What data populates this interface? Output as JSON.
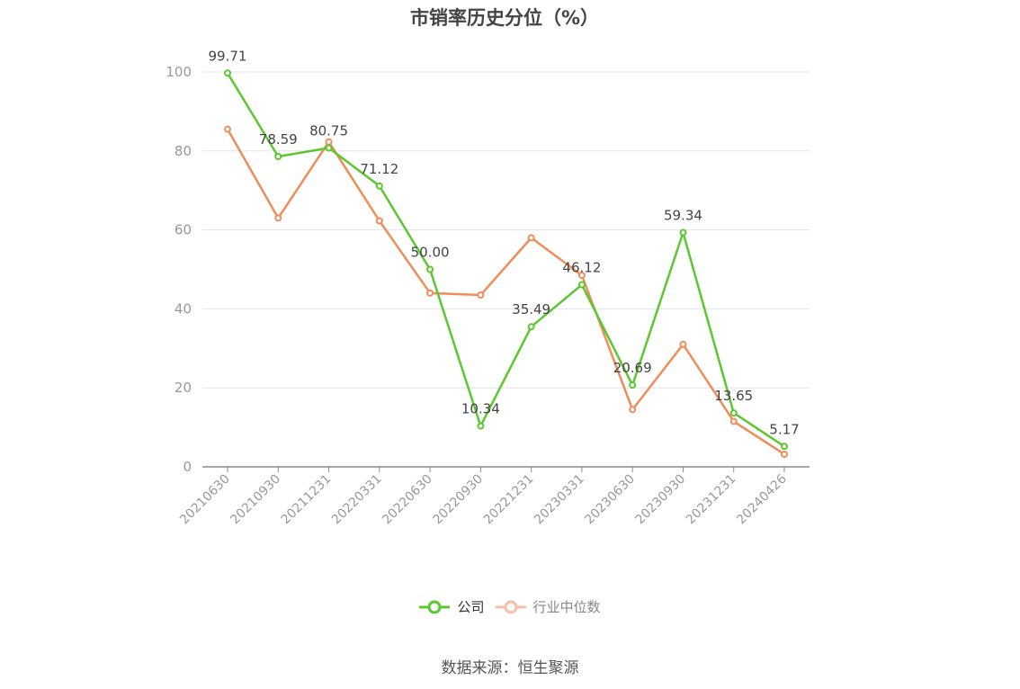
{
  "chart_data": {
    "type": "line",
    "title": "市销率历史分位（%）",
    "categories": [
      "20210630",
      "20210930",
      "20211231",
      "20220331",
      "20220630",
      "20220930",
      "20221231",
      "20230331",
      "20230630",
      "20230930",
      "20231231",
      "20240426"
    ],
    "series": [
      {
        "name": "公司",
        "color": "#5cc72f",
        "values": [
          99.71,
          78.59,
          80.75,
          71.12,
          50.0,
          10.34,
          35.49,
          46.12,
          20.69,
          59.34,
          13.65,
          5.17
        ],
        "labels": [
          "99.71",
          "78.59",
          "80.75",
          "71.12",
          "50.00",
          "10.34",
          "35.49",
          "46.12",
          "20.69",
          "59.34",
          "13.65",
          "5.17"
        ]
      },
      {
        "name": "行业中位数",
        "color": "#f08c5a",
        "values": [
          85.5,
          63,
          82.3,
          62.3,
          44,
          43.5,
          58,
          48.5,
          14.5,
          31,
          11.5,
          3.2
        ]
      }
    ],
    "yticks": [
      "0",
      "20",
      "40",
      "60",
      "80",
      "100"
    ],
    "ylim": [
      0,
      100
    ],
    "grid": true,
    "legend_position": "bottom"
  },
  "source": "数据来源：恒生聚源"
}
